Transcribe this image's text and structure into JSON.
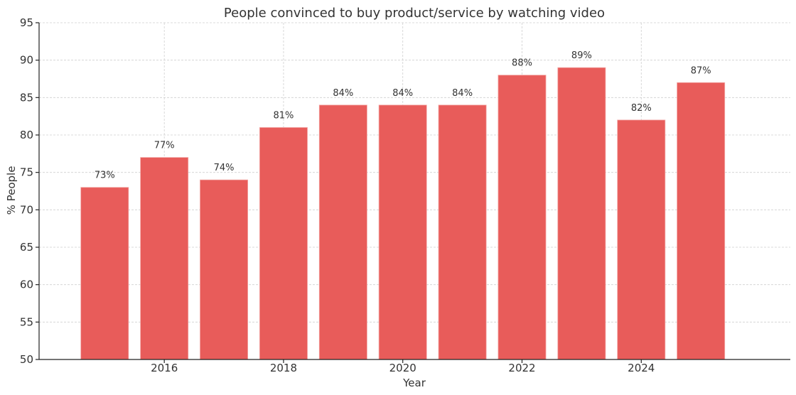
{
  "chart_data": {
    "type": "bar",
    "title": "People convinced to buy product/service by watching video",
    "xlabel": "Year",
    "ylabel": "% People",
    "x": [
      2015,
      2016,
      2017,
      2018,
      2019,
      2020,
      2021,
      2022,
      2023,
      2024,
      2025
    ],
    "values": [
      73,
      77,
      74,
      81,
      84,
      84,
      84,
      88,
      89,
      82,
      87
    ],
    "data_labels": [
      "73%",
      "77%",
      "74%",
      "81%",
      "84%",
      "84%",
      "84%",
      "88%",
      "89%",
      "82%",
      "87%"
    ],
    "xlim": [
      2013.9,
      2026.5
    ],
    "ylim": [
      50,
      95
    ],
    "x_ticks": [
      2016,
      2018,
      2020,
      2022,
      2024
    ],
    "y_ticks": [
      50,
      55,
      60,
      65,
      70,
      75,
      80,
      85,
      90,
      95
    ],
    "bar_color": "#e85c5a",
    "grid": true
  }
}
